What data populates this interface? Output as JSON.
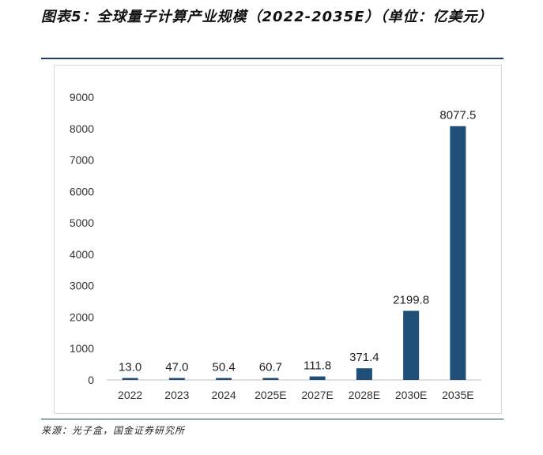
{
  "figure": {
    "title": "图表5：全球量子计算产业规模（2022-2035E）（单位：亿美元）",
    "source": "来源：光子盒，国金证券研究所"
  },
  "chart_data": {
    "type": "bar",
    "title": "图表5：全球量子计算产业规模（2022-2035E）（单位：亿美元）",
    "categories": [
      "2022",
      "2023",
      "2024",
      "2025E",
      "2027E",
      "2028E",
      "2030E",
      "2035E"
    ],
    "values": [
      13.0,
      47.0,
      50.4,
      60.7,
      111.8,
      371.4,
      2199.8,
      8077.5
    ],
    "value_labels": [
      "13.0",
      "47.0",
      "50.4",
      "60.7",
      "111.8",
      "371.4",
      "2199.8",
      "8077.5"
    ],
    "ylim": [
      0,
      9000
    ],
    "yticks": [
      "0",
      "1000",
      "2000",
      "3000",
      "4000",
      "5000",
      "6000",
      "7000",
      "8000",
      "9000"
    ],
    "bar_color": "#1f4e79",
    "grid": false,
    "legend": "none"
  }
}
